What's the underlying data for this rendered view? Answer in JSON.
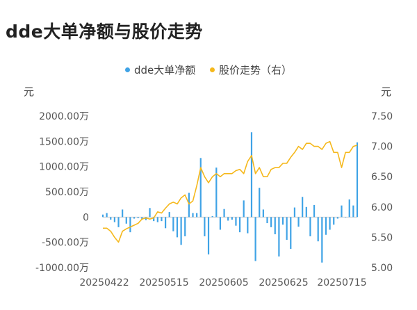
{
  "title": "dde大单净额与股价走势",
  "legend": [
    {
      "label": "dde大单净额",
      "color": "#3fa3e6"
    },
    {
      "label": "股价走势（右）",
      "color": "#f5b81c"
    }
  ],
  "chart_data": {
    "type": "bar+line",
    "left_axis": {
      "unit": "元",
      "ticks": [
        "2000.00万",
        "1500.00万",
        "1000.00万",
        "500.00万",
        "0",
        "-500.00万",
        "-1000.00万"
      ],
      "min": -1000,
      "max": 2000
    },
    "right_axis": {
      "unit": "元",
      "ticks": [
        "7.50",
        "7.00",
        "6.50",
        "6.00",
        "5.50",
        "5.00"
      ],
      "min": 5.0,
      "max": 7.5
    },
    "x_labels": [
      "20250422",
      "20250515",
      "20250605",
      "20250625",
      "20250715"
    ],
    "series": [
      {
        "name": "dde大单净额",
        "type": "bar",
        "color": "#3fa3e6",
        "values": [
          50,
          80,
          -50,
          -100,
          -200,
          150,
          -130,
          -300,
          -30,
          -20,
          -50,
          -60,
          180,
          -80,
          -100,
          -80,
          -220,
          100,
          -280,
          -400,
          -550,
          -380,
          480,
          80,
          80,
          1170,
          -380,
          -740,
          20,
          980,
          -250,
          160,
          -70,
          -50,
          -170,
          -300,
          330,
          -320,
          1680,
          -870,
          580,
          150,
          -120,
          -200,
          -340,
          -780,
          -150,
          -450,
          -630,
          190,
          -190,
          400,
          200,
          -380,
          240,
          -480,
          -900,
          -350,
          -250,
          -150,
          -30,
          230,
          0,
          350,
          230,
          1480
        ]
      },
      {
        "name": "股价走势（右）",
        "type": "line",
        "color": "#f5b81c",
        "values": [
          5.65,
          5.65,
          5.6,
          5.5,
          5.42,
          5.6,
          5.64,
          5.67,
          5.7,
          5.73,
          5.8,
          5.82,
          5.8,
          5.82,
          5.92,
          5.9,
          5.98,
          6.05,
          6.08,
          6.05,
          6.15,
          6.2,
          6.05,
          6.1,
          6.35,
          6.65,
          6.5,
          6.4,
          6.5,
          6.55,
          6.5,
          6.55,
          6.55,
          6.55,
          6.6,
          6.62,
          6.55,
          6.75,
          6.85,
          6.55,
          6.65,
          6.5,
          6.5,
          6.62,
          6.65,
          6.65,
          6.72,
          6.72,
          6.82,
          6.9,
          7.0,
          6.95,
          7.05,
          7.05,
          7.0,
          7.0,
          6.95,
          7.05,
          7.08,
          6.9,
          6.9,
          6.65,
          6.9,
          6.9,
          7.0,
          7.02
        ]
      }
    ],
    "grid": false
  }
}
